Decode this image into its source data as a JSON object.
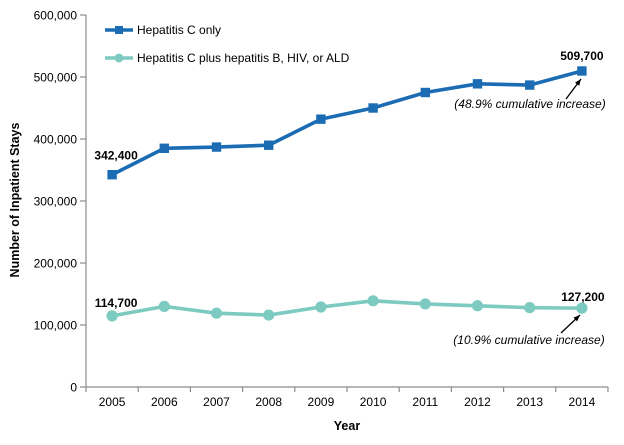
{
  "chart_data": {
    "type": "line",
    "title": "",
    "xlabel": "Year",
    "ylabel": "Number of Inpatient Stays",
    "x": [
      2005,
      2006,
      2007,
      2008,
      2009,
      2010,
      2011,
      2012,
      2013,
      2014
    ],
    "ylim": [
      0,
      600000
    ],
    "yticks": [
      0,
      100000,
      200000,
      300000,
      400000,
      500000,
      600000
    ],
    "grid": false,
    "legend_position": "top-left-inside",
    "axis_color": "#8c8c8c",
    "text_color": "#000000",
    "series": [
      {
        "name": "Hepatitis C only",
        "color": "#1b6cb3",
        "marker": "square",
        "values": [
          342400,
          385000,
          387000,
          390000,
          432000,
          450000,
          475000,
          489000,
          487000,
          509700
        ]
      },
      {
        "name": "Hepatitis C plus hepatitis B, HIV, or ALD",
        "color": "#7dcbc0",
        "marker": "circle",
        "values": [
          114700,
          130000,
          119000,
          116000,
          129000,
          139000,
          134000,
          131000,
          128000,
          127200
        ]
      }
    ],
    "point_labels": [
      {
        "series": 0,
        "index": 0,
        "text": "342,400"
      },
      {
        "series": 0,
        "index": 9,
        "text": "509,700"
      },
      {
        "series": 1,
        "index": 0,
        "text": "114,700"
      },
      {
        "series": 1,
        "index": 9,
        "text": "127,200"
      }
    ],
    "annotations": [
      {
        "text": "(48.9% cumulative increase)",
        "series": 0
      },
      {
        "text": "(10.9% cumulative increase)",
        "series": 1
      }
    ]
  }
}
